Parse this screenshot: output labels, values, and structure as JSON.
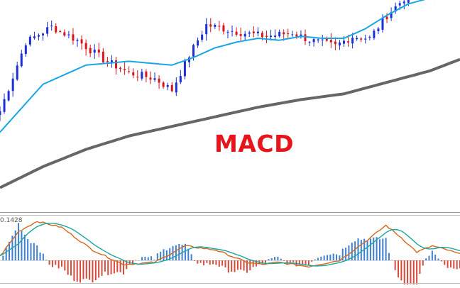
{
  "overlay": {
    "title": "MACD"
  },
  "indicator": {
    "value_label": "0.1428"
  },
  "colors": {
    "bull_candle": "#1b2fd6",
    "bear_candle": "#d8141c",
    "fast_ma": "#1aa6e6",
    "slow_ma": "#666666",
    "macd_hist_pos": "#3f7fd0",
    "macd_hist_neg": "#d84a3c",
    "macd_line": "#1aa6a0",
    "signal_line": "#d2691e",
    "title": "#e8141c"
  },
  "chart_data": [
    {
      "type": "candlestick",
      "title": "MACD",
      "n_bars": 108,
      "ylim": [
        0,
        100
      ],
      "series": [
        {
          "name": "price",
          "anchors_x": [
            0,
            6,
            12,
            18,
            24,
            30,
            36,
            40,
            44,
            48,
            52,
            56,
            62,
            68,
            72,
            78,
            82,
            86,
            90,
            95,
            100,
            104,
            107
          ],
          "anchors_y": [
            42,
            78,
            86,
            79,
            69,
            62,
            59,
            53,
            71,
            87,
            85,
            83,
            81,
            83,
            79,
            76,
            81,
            80,
            92,
            103,
            104,
            108,
            106
          ]
        },
        {
          "name": "fast_ma",
          "anchors_x": [
            0,
            10,
            20,
            30,
            40,
            45,
            50,
            55,
            60,
            65,
            70,
            75,
            80,
            85,
            90,
            95,
            100,
            107
          ],
          "anchors_y": [
            31,
            56,
            66,
            68,
            66,
            70,
            75,
            78,
            80,
            79,
            81,
            80,
            80,
            85,
            92,
            98,
            101,
            107
          ]
        },
        {
          "name": "slow_ma",
          "anchors_x": [
            0,
            10,
            20,
            30,
            40,
            50,
            60,
            70,
            80,
            90,
            100,
            107
          ],
          "anchors_y": [
            2,
            13,
            22,
            29,
            34,
            39,
            44,
            48,
            51,
            57,
            63,
            69
          ]
        }
      ]
    },
    {
      "type": "macd",
      "title": "",
      "ylim": [
        -1,
        1
      ],
      "series": [
        {
          "name": "histogram"
        },
        {
          "name": "macd_line"
        },
        {
          "name": "signal_line"
        }
      ]
    }
  ]
}
